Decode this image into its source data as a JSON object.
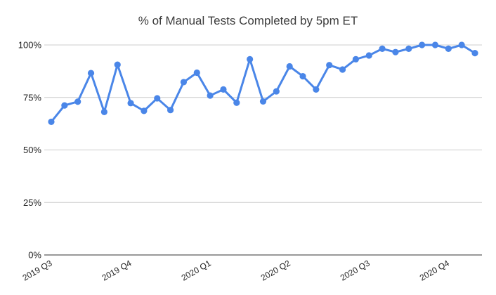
{
  "chart_data": {
    "type": "line",
    "title": "% of Manual Tests Completed by 5pm ET",
    "xlabel": "",
    "ylabel": "",
    "ylim": [
      0,
      1
    ],
    "yticks": [
      "0%",
      "25%",
      "50%",
      "75%",
      "100%"
    ],
    "ytick_values": [
      0,
      0.25,
      0.5,
      0.75,
      1.0
    ],
    "xtick_labels": [
      "2019 Q3",
      "2019 Q4",
      "2020 Q1",
      "2020 Q2",
      "2020 Q3",
      "2020 Q4"
    ],
    "xtick_indices": [
      0,
      6,
      12,
      18,
      24,
      30
    ],
    "grid": true,
    "legend": "none",
    "series": [
      {
        "color": "#4a86e8",
        "values": [
          0.634,
          0.712,
          0.73,
          0.866,
          0.681,
          0.906,
          0.723,
          0.686,
          0.746,
          0.69,
          0.823,
          0.868,
          0.759,
          0.788,
          0.725,
          0.932,
          0.731,
          0.779,
          0.898,
          0.851,
          0.788,
          0.904,
          0.883,
          0.932,
          0.95,
          0.982,
          0.966,
          0.982,
          1.0,
          1.0,
          0.982,
          1.0,
          0.961
        ]
      }
    ]
  }
}
